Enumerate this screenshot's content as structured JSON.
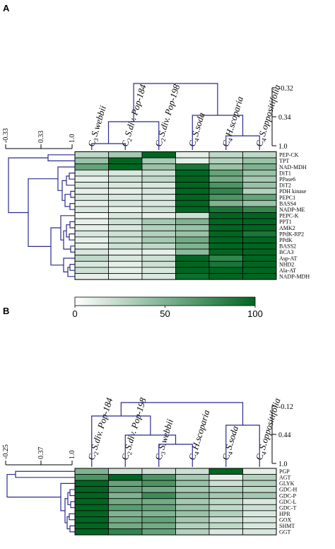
{
  "chart_data": [
    {
      "type": "heatmap",
      "panel": "A",
      "columns": [
        {
          "prefix": "C",
          "sub": "3",
          "name": "S.webbii"
        },
        {
          "prefix": "C",
          "sub": "2",
          "name": "S.div. Pop-184"
        },
        {
          "prefix": "C",
          "sub": "2",
          "name": "S.div. Pop-198"
        },
        {
          "prefix": "C",
          "sub": "4",
          "name": "S.soda"
        },
        {
          "prefix": "C",
          "sub": "4",
          "name": "H.scoparia"
        },
        {
          "prefix": "C",
          "sub": "4",
          "name": "S.oppositifolia"
        }
      ],
      "rows": [
        "PEP-CK",
        "TPT",
        "NAD-MDH",
        "DiT1",
        "PPase6",
        "DiT2",
        "PDH kinase",
        "PEPC1",
        "BASS4",
        "NADP-ME",
        "PEPC-K",
        "PPT1",
        "AMK2",
        "PPdK-RP2",
        "PPdK",
        "BASS2",
        "BCA3",
        "Asp-AT",
        "NHD2",
        "Ala-AT",
        "NADP-MDH"
      ],
      "values": [
        [
          25,
          35,
          100,
          10,
          25,
          25
        ],
        [
          40,
          100,
          35,
          10,
          30,
          40
        ],
        [
          60,
          100,
          40,
          90,
          40,
          50
        ],
        [
          15,
          15,
          20,
          100,
          60,
          40
        ],
        [
          10,
          20,
          25,
          100,
          55,
          35
        ],
        [
          15,
          15,
          15,
          100,
          70,
          40
        ],
        [
          10,
          10,
          15,
          100,
          80,
          30
        ],
        [
          15,
          15,
          15,
          100,
          70,
          60
        ],
        [
          10,
          15,
          15,
          100,
          50,
          40
        ],
        [
          15,
          10,
          20,
          100,
          90,
          80
        ],
        [
          5,
          15,
          10,
          20,
          100,
          100
        ],
        [
          10,
          20,
          35,
          50,
          100,
          100
        ],
        [
          10,
          15,
          30,
          40,
          100,
          100
        ],
        [
          15,
          20,
          30,
          40,
          100,
          90
        ],
        [
          10,
          20,
          35,
          55,
          100,
          100
        ],
        [
          10,
          20,
          25,
          50,
          100,
          100
        ],
        [
          15,
          10,
          10,
          45,
          100,
          100
        ],
        [
          25,
          15,
          20,
          100,
          80,
          100
        ],
        [
          15,
          10,
          20,
          100,
          90,
          100
        ],
        [
          20,
          10,
          15,
          100,
          100,
          100
        ],
        [
          10,
          10,
          15,
          95,
          100,
          100
        ]
      ],
      "col_dendrogram_ticks": [
        "-0.32",
        "0.34",
        "1.0"
      ],
      "row_dendrogram_ticks": [
        "-0.33",
        "0.33",
        "1.0"
      ],
      "colorbar": {
        "ticks": [
          "0",
          "50",
          "100"
        ],
        "min": 0,
        "max": 100,
        "low_color": "#ffffff",
        "high_color": "#006622"
      }
    },
    {
      "type": "heatmap",
      "panel": "B",
      "columns": [
        {
          "prefix": "C",
          "sub": "2",
          "name": "S.div. Pop-184"
        },
        {
          "prefix": "C",
          "sub": "2",
          "name": "S.div. Pop-198"
        },
        {
          "prefix": "C",
          "sub": "3",
          "name": "S.webbii"
        },
        {
          "prefix": "C",
          "sub": "4",
          "name": "H.scoparia"
        },
        {
          "prefix": "C",
          "sub": "4",
          "name": "S.soda"
        },
        {
          "prefix": "C",
          "sub": "4",
          "name": "S.oppositifolia"
        }
      ],
      "rows": [
        "PGP",
        "AGT",
        "GLYK",
        "GDC-H",
        "GDC-P",
        "GDC-L",
        "GDC-T",
        "HPR",
        "GOX",
        "SHMT",
        "GGT"
      ],
      "values": [
        [
          50,
          20,
          20,
          20,
          100,
          10
        ],
        [
          70,
          100,
          70,
          35,
          10,
          30
        ],
        [
          100,
          60,
          70,
          40,
          20,
          30
        ],
        [
          100,
          60,
          55,
          35,
          30,
          25
        ],
        [
          100,
          50,
          75,
          45,
          35,
          35
        ],
        [
          100,
          55,
          55,
          35,
          25,
          15
        ],
        [
          100,
          65,
          60,
          40,
          25,
          20
        ],
        [
          100,
          50,
          50,
          40,
          30,
          15
        ],
        [
          100,
          55,
          60,
          35,
          20,
          15
        ],
        [
          100,
          55,
          55,
          30,
          25,
          15
        ],
        [
          100,
          80,
          60,
          30,
          15,
          15
        ]
      ],
      "col_dendrogram_ticks": [
        "-0.12",
        "0.44",
        "1.0"
      ],
      "row_dendrogram_ticks": [
        "-0.25",
        "0.37",
        "1.0"
      ]
    }
  ],
  "colors": {
    "dendrogram": "#2b2b8f",
    "heat_high": "#006622",
    "heat_low": "#ffffff"
  }
}
